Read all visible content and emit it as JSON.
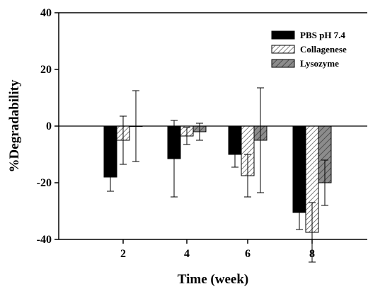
{
  "chart_data": {
    "type": "bar",
    "title": "",
    "xlabel": "Time (week)",
    "ylabel": "%Degradability",
    "categories": [
      "2",
      "4",
      "6",
      "8"
    ],
    "ylim": [
      -40,
      40
    ],
    "yticks": [
      -40,
      -20,
      0,
      20,
      40
    ],
    "grid": false,
    "legend_position": "top-right",
    "series": [
      {
        "name": "PBS pH 7.4",
        "fill": "solid-black",
        "color": "#000000",
        "values": [
          -18,
          -11.5,
          -10,
          -30.5
        ],
        "error": [
          5,
          13.5,
          4.5,
          6
        ]
      },
      {
        "name": "Collagenese",
        "fill": "white-diagonal-hatch",
        "color": "#ffffff",
        "values": [
          -5,
          -3.5,
          -17.5,
          -37.5
        ],
        "error": [
          8.5,
          3,
          7.5,
          10.5
        ]
      },
      {
        "name": "Lysozyme",
        "fill": "gray-diagonal-hatch",
        "color": "#8c8c8c",
        "values": [
          0,
          -2,
          -5,
          -20
        ],
        "error": [
          12.5,
          3,
          18.5,
          8
        ]
      }
    ]
  }
}
